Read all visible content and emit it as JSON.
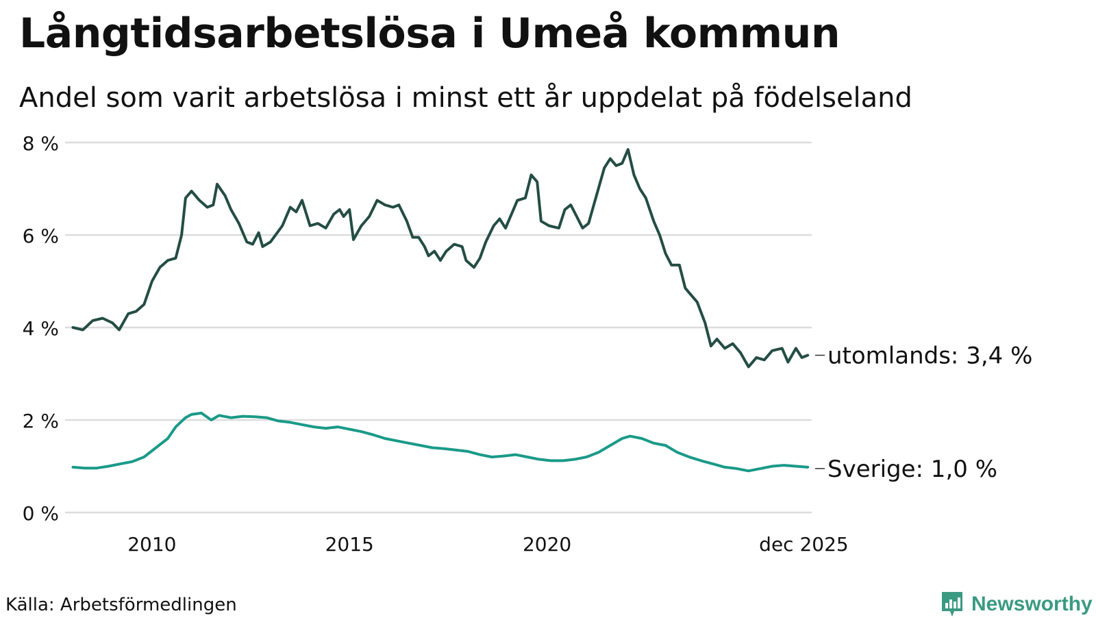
{
  "header": {
    "title": "Långtidsarbetslösa i Umeå kommun",
    "subtitle": "Andel som varit arbetslösa i minst ett år uppdelat på födelseland"
  },
  "footer": {
    "source": "Källa: Arbetsförmedlingen",
    "brand": "Newsworthy"
  },
  "colors": {
    "series_abroad": "#244d44",
    "series_sweden": "#1a9a88",
    "grid": "#dcdcdc",
    "logo": "#3a9a82"
  },
  "chart_data": {
    "type": "line",
    "title": "Långtidsarbetslösa i Umeå kommun",
    "subtitle": "Andel som varit arbetslösa i minst ett år uppdelat på födelseland",
    "ylabel": "",
    "xlabel": "",
    "ylim": [
      0,
      8
    ],
    "xlim": [
      2008.0,
      2025.917
    ],
    "y_ticks": [
      "0 %",
      "2 %",
      "4 %",
      "6 %",
      "8 %"
    ],
    "x_ticks": [
      "2010",
      "2015",
      "2020",
      "dec 2025"
    ],
    "grid": true,
    "series": [
      {
        "name": "utomlands",
        "end_label": "utomlands: 3,4 %",
        "points": [
          [
            2008.0,
            4.0
          ],
          [
            2008.25,
            3.95
          ],
          [
            2008.5,
            4.15
          ],
          [
            2008.75,
            4.2
          ],
          [
            2009.0,
            4.1
          ],
          [
            2009.17,
            3.95
          ],
          [
            2009.4,
            4.3
          ],
          [
            2009.6,
            4.35
          ],
          [
            2009.8,
            4.5
          ],
          [
            2010.0,
            5.0
          ],
          [
            2010.2,
            5.3
          ],
          [
            2010.4,
            5.45
          ],
          [
            2010.6,
            5.5
          ],
          [
            2010.75,
            6.0
          ],
          [
            2010.85,
            6.8
          ],
          [
            2011.0,
            6.95
          ],
          [
            2011.2,
            6.75
          ],
          [
            2011.4,
            6.6
          ],
          [
            2011.55,
            6.65
          ],
          [
            2011.65,
            7.1
          ],
          [
            2011.85,
            6.85
          ],
          [
            2012.0,
            6.55
          ],
          [
            2012.2,
            6.25
          ],
          [
            2012.4,
            5.85
          ],
          [
            2012.55,
            5.8
          ],
          [
            2012.7,
            6.05
          ],
          [
            2012.8,
            5.75
          ],
          [
            2013.0,
            5.85
          ],
          [
            2013.3,
            6.2
          ],
          [
            2013.5,
            6.6
          ],
          [
            2013.65,
            6.5
          ],
          [
            2013.8,
            6.75
          ],
          [
            2014.0,
            6.2
          ],
          [
            2014.2,
            6.25
          ],
          [
            2014.4,
            6.15
          ],
          [
            2014.6,
            6.45
          ],
          [
            2014.75,
            6.55
          ],
          [
            2014.85,
            6.4
          ],
          [
            2015.0,
            6.55
          ],
          [
            2015.1,
            5.9
          ],
          [
            2015.3,
            6.2
          ],
          [
            2015.5,
            6.4
          ],
          [
            2015.7,
            6.75
          ],
          [
            2015.9,
            6.65
          ],
          [
            2016.1,
            6.6
          ],
          [
            2016.25,
            6.65
          ],
          [
            2016.45,
            6.3
          ],
          [
            2016.6,
            5.95
          ],
          [
            2016.75,
            5.95
          ],
          [
            2016.9,
            5.75
          ],
          [
            2017.0,
            5.55
          ],
          [
            2017.15,
            5.65
          ],
          [
            2017.3,
            5.45
          ],
          [
            2017.45,
            5.65
          ],
          [
            2017.65,
            5.8
          ],
          [
            2017.85,
            5.75
          ],
          [
            2017.95,
            5.45
          ],
          [
            2018.15,
            5.3
          ],
          [
            2018.3,
            5.5
          ],
          [
            2018.45,
            5.85
          ],
          [
            2018.65,
            6.2
          ],
          [
            2018.8,
            6.35
          ],
          [
            2018.95,
            6.15
          ],
          [
            2019.1,
            6.45
          ],
          [
            2019.25,
            6.75
          ],
          [
            2019.45,
            6.8
          ],
          [
            2019.6,
            7.3
          ],
          [
            2019.75,
            7.15
          ],
          [
            2019.85,
            6.3
          ],
          [
            2020.05,
            6.2
          ],
          [
            2020.3,
            6.15
          ],
          [
            2020.45,
            6.55
          ],
          [
            2020.6,
            6.65
          ],
          [
            2020.75,
            6.4
          ],
          [
            2020.9,
            6.15
          ],
          [
            2021.05,
            6.25
          ],
          [
            2021.25,
            6.85
          ],
          [
            2021.45,
            7.45
          ],
          [
            2021.6,
            7.65
          ],
          [
            2021.75,
            7.5
          ],
          [
            2021.9,
            7.55
          ],
          [
            2022.05,
            7.85
          ],
          [
            2022.2,
            7.3
          ],
          [
            2022.35,
            7.0
          ],
          [
            2022.5,
            6.8
          ],
          [
            2022.7,
            6.3
          ],
          [
            2022.85,
            6.0
          ],
          [
            2023.0,
            5.6
          ],
          [
            2023.15,
            5.35
          ],
          [
            2023.35,
            5.35
          ],
          [
            2023.5,
            4.85
          ],
          [
            2023.65,
            4.7
          ],
          [
            2023.8,
            4.55
          ],
          [
            2024.0,
            4.1
          ],
          [
            2024.15,
            3.6
          ],
          [
            2024.3,
            3.75
          ],
          [
            2024.5,
            3.55
          ],
          [
            2024.7,
            3.65
          ],
          [
            2024.9,
            3.45
          ],
          [
            2025.1,
            3.15
          ],
          [
            2025.3,
            3.35
          ],
          [
            2025.5,
            3.3
          ],
          [
            2025.7,
            3.5
          ],
          [
            2025.95,
            3.55
          ],
          [
            2026.1,
            3.25
          ],
          [
            2026.3,
            3.55
          ],
          [
            2026.45,
            3.35
          ],
          [
            2026.6,
            3.4
          ]
        ]
      },
      {
        "name": "Sverige",
        "end_label": "Sverige: 1,0 %",
        "points": [
          [
            2008.0,
            0.98
          ],
          [
            2008.3,
            0.96
          ],
          [
            2008.6,
            0.96
          ],
          [
            2008.9,
            1.0
          ],
          [
            2009.2,
            1.05
          ],
          [
            2009.5,
            1.1
          ],
          [
            2009.8,
            1.2
          ],
          [
            2010.1,
            1.4
          ],
          [
            2010.4,
            1.6
          ],
          [
            2010.6,
            1.85
          ],
          [
            2010.85,
            2.05
          ],
          [
            2011.0,
            2.12
          ],
          [
            2011.25,
            2.15
          ],
          [
            2011.5,
            2.0
          ],
          [
            2011.7,
            2.1
          ],
          [
            2012.0,
            2.05
          ],
          [
            2012.3,
            2.08
          ],
          [
            2012.6,
            2.07
          ],
          [
            2012.9,
            2.05
          ],
          [
            2013.2,
            1.98
          ],
          [
            2013.5,
            1.95
          ],
          [
            2013.8,
            1.9
          ],
          [
            2014.1,
            1.85
          ],
          [
            2014.4,
            1.82
          ],
          [
            2014.7,
            1.85
          ],
          [
            2015.0,
            1.8
          ],
          [
            2015.3,
            1.75
          ],
          [
            2015.6,
            1.68
          ],
          [
            2015.9,
            1.6
          ],
          [
            2016.2,
            1.55
          ],
          [
            2016.5,
            1.5
          ],
          [
            2016.8,
            1.45
          ],
          [
            2017.1,
            1.4
          ],
          [
            2017.4,
            1.38
          ],
          [
            2017.7,
            1.35
          ],
          [
            2018.0,
            1.32
          ],
          [
            2018.3,
            1.25
          ],
          [
            2018.6,
            1.2
          ],
          [
            2018.9,
            1.22
          ],
          [
            2019.2,
            1.25
          ],
          [
            2019.5,
            1.2
          ],
          [
            2019.8,
            1.15
          ],
          [
            2020.1,
            1.12
          ],
          [
            2020.4,
            1.12
          ],
          [
            2020.7,
            1.15
          ],
          [
            2021.0,
            1.2
          ],
          [
            2021.3,
            1.3
          ],
          [
            2021.6,
            1.45
          ],
          [
            2021.9,
            1.6
          ],
          [
            2022.1,
            1.65
          ],
          [
            2022.4,
            1.6
          ],
          [
            2022.7,
            1.5
          ],
          [
            2023.0,
            1.45
          ],
          [
            2023.3,
            1.3
          ],
          [
            2023.6,
            1.2
          ],
          [
            2023.9,
            1.12
          ],
          [
            2024.2,
            1.05
          ],
          [
            2024.5,
            0.98
          ],
          [
            2024.8,
            0.95
          ],
          [
            2025.1,
            0.9
          ],
          [
            2025.4,
            0.95
          ],
          [
            2025.7,
            1.0
          ],
          [
            2026.0,
            1.02
          ],
          [
            2026.3,
            1.0
          ],
          [
            2026.6,
            0.98
          ]
        ]
      }
    ]
  }
}
